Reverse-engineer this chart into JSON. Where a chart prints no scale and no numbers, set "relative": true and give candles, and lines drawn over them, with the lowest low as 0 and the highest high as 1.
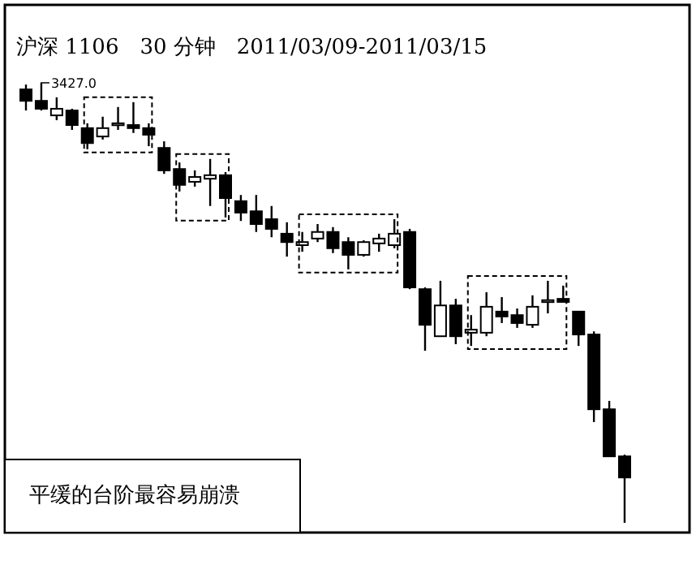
{
  "chart_data": {
    "type": "candlestick",
    "relative": true,
    "title": "沪深 1106　30 分钟　2011/03/09-2011/03/15",
    "categories": [
      null,
      null,
      null,
      null,
      null,
      null,
      null,
      null,
      null,
      null,
      null,
      null,
      null,
      null,
      null,
      null,
      null,
      null,
      null,
      null,
      null,
      null,
      null,
      null,
      null,
      null,
      null,
      null,
      null,
      null,
      null,
      null,
      null,
      null,
      null,
      null,
      null,
      null,
      null,
      null
    ],
    "ohlc": [
      [
        0.985,
        0.996,
        0.937,
        0.959
      ],
      [
        0.959,
        1,
        0.937,
        0.941
      ],
      [
        0.926,
        0.967,
        0.915,
        0.941
      ],
      [
        0.937,
        0.941,
        0.893,
        0.904
      ],
      [
        0.897,
        0.908,
        0.849,
        0.863
      ],
      [
        0.878,
        0.923,
        0.871,
        0.897
      ],
      [
        0.904,
        0.945,
        0.893,
        0.908
      ],
      [
        0.904,
        0.956,
        0.886,
        0.897
      ],
      [
        0.897,
        0.908,
        0.856,
        0.882
      ],
      [
        0.852,
        0.867,
        0.793,
        0.801
      ],
      [
        0.804,
        0.819,
        0.753,
        0.768
      ],
      [
        0.775,
        0.801,
        0.764,
        0.786
      ],
      [
        0.782,
        0.827,
        0.72,
        0.79
      ],
      [
        0.79,
        0.797,
        0.694,
        0.738
      ],
      [
        0.731,
        0.745,
        0.686,
        0.705
      ],
      [
        0.708,
        0.745,
        0.661,
        0.679
      ],
      [
        0.69,
        0.72,
        0.649,
        0.668
      ],
      [
        0.657,
        0.683,
        0.605,
        0.638
      ],
      [
        0.631,
        0.661,
        0.616,
        0.638
      ],
      [
        0.646,
        0.679,
        0.638,
        0.661
      ],
      [
        0.661,
        0.672,
        0.613,
        0.624
      ],
      [
        0.638,
        0.649,
        0.576,
        0.609
      ],
      [
        0.609,
        0.642,
        0.605,
        0.638
      ],
      [
        0.635,
        0.657,
        0.616,
        0.646
      ],
      [
        0.631,
        0.69,
        0.624,
        0.657
      ],
      [
        0.661,
        0.668,
        0.531,
        0.535
      ],
      [
        0.531,
        0.535,
        0.391,
        0.45
      ],
      [
        0.424,
        0.55,
        0.424,
        0.494
      ],
      [
        0.494,
        0.509,
        0.406,
        0.424
      ],
      [
        0.432,
        0.472,
        0.402,
        0.439
      ],
      [
        0.432,
        0.524,
        0.424,
        0.491
      ],
      [
        0.48,
        0.513,
        0.454,
        0.469
      ],
      [
        0.472,
        0.487,
        0.443,
        0.454
      ],
      [
        0.45,
        0.517,
        0.443,
        0.491
      ],
      [
        0.502,
        0.55,
        0.476,
        0.506
      ],
      [
        0.509,
        0.539,
        0.502,
        0.502
      ],
      [
        0.48,
        0.48,
        0.402,
        0.428
      ],
      [
        0.428,
        0.435,
        0.229,
        0.258
      ],
      [
        0.258,
        0.277,
        0.151,
        0.151
      ],
      [
        0.151,
        0.155,
        0,
        0.103
      ]
    ],
    "annotations": [
      "3427.0",
      "平缓的台阶最容易崩溃"
    ]
  }
}
